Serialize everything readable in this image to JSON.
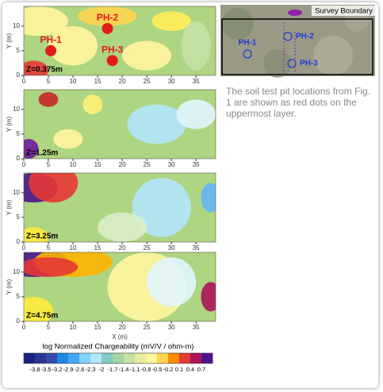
{
  "panels": [
    {
      "label": "Z=0.375m",
      "points": [
        {
          "label": "PH-1",
          "x": 5.5,
          "y": 5
        },
        {
          "label": "PH-2",
          "x": 17,
          "y": 9.5
        },
        {
          "label": "PH-3",
          "x": 18,
          "y": 3
        }
      ]
    },
    {
      "label": "Z=1.25m"
    },
    {
      "label": "Z=3.25m"
    },
    {
      "label": "Z=4.75m"
    }
  ],
  "axes": {
    "ylabel": "Y (m)",
    "xlabel": "X (m)",
    "xlim": [
      0,
      39
    ],
    "ylim": [
      0,
      14
    ],
    "xticks": [
      0,
      5,
      10,
      15,
      20,
      25,
      30,
      35
    ],
    "yticks": [
      0,
      5,
      10
    ]
  },
  "colorbar": {
    "title": "log Normalized Chargeability (mV/V / ohm-m)",
    "ticks": [
      -3.8,
      -3.5,
      -3.2,
      -2.9,
      -2.6,
      -2.3,
      -2,
      -1.7,
      -1.4,
      -1.1,
      -0.8,
      -0.5,
      -0.2,
      0.1,
      0.4,
      0.7
    ]
  },
  "inset": {
    "title": "Survey Boundary",
    "labels": [
      "PH-1",
      "PH-2",
      "PH-3"
    ]
  },
  "caption": "The soil test pit locations from Fig. 1 are shown as red dots on the uppermost layer."
}
